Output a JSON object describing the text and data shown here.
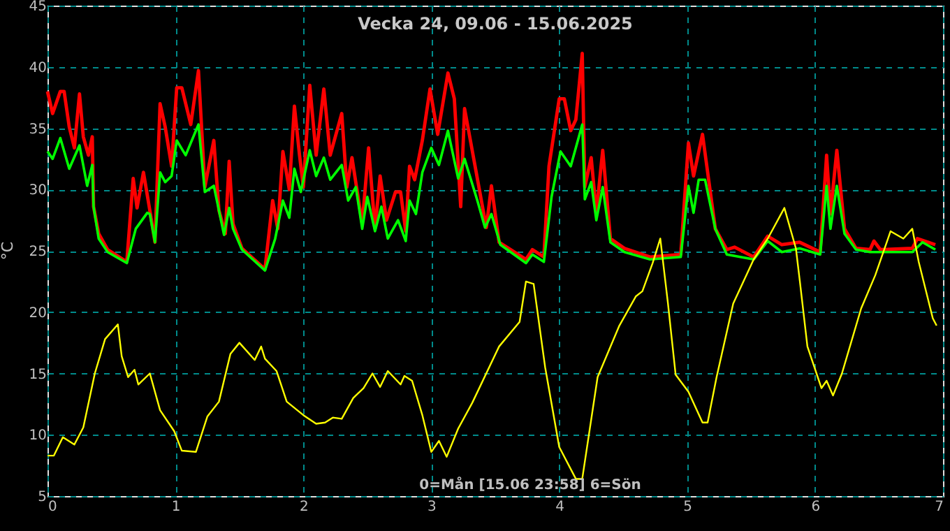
{
  "chart_data": {
    "type": "line",
    "title": "Vecka 24, 09.06 - 15.06.2025",
    "ylabel": "°C",
    "annotations": [
      "0=Mån [15.06 23:58] 6=Sön"
    ],
    "xlim": [
      0,
      7
    ],
    "xticks": [
      0,
      1,
      2,
      3,
      4,
      5,
      6,
      7
    ],
    "ylim": [
      5,
      45
    ],
    "yticks": [
      5,
      10,
      15,
      20,
      25,
      30,
      35,
      40,
      45
    ],
    "grid": true,
    "series": [
      {
        "color": "#ff0000",
        "x": [
          0.0,
          0.04,
          0.1,
          0.13,
          0.17,
          0.21,
          0.25,
          0.28,
          0.32,
          0.35,
          0.36,
          0.4,
          0.47,
          0.62,
          0.67,
          0.7,
          0.75,
          0.8,
          0.84,
          0.88,
          0.92,
          0.97,
          1.01,
          1.05,
          1.12,
          1.18,
          1.2,
          1.23,
          1.3,
          1.34,
          1.39,
          1.42,
          1.45,
          1.52,
          1.7,
          1.76,
          1.8,
          1.84,
          1.89,
          1.93,
          1.97,
          2.0,
          2.05,
          2.1,
          2.16,
          2.21,
          2.3,
          2.34,
          2.38,
          2.46,
          2.51,
          2.56,
          2.6,
          2.65,
          2.72,
          2.76,
          2.8,
          2.83,
          2.87,
          2.93,
          2.99,
          3.05,
          3.13,
          3.18,
          3.23,
          3.26,
          3.36,
          3.43,
          3.47,
          3.53,
          3.74,
          3.79,
          3.88,
          3.92,
          4.0,
          4.04,
          4.09,
          4.13,
          4.18,
          4.2,
          4.25,
          4.29,
          4.34,
          4.4,
          4.51,
          4.71,
          4.95,
          5.01,
          5.05,
          5.12,
          5.22,
          5.31,
          5.37,
          5.52,
          5.63,
          5.74,
          5.88,
          6.04,
          6.09,
          6.12,
          6.17,
          6.23,
          6.32,
          6.43,
          6.46,
          6.51,
          6.76,
          6.8,
          6.94
        ],
        "values": [
          38.0,
          36.2,
          38.0,
          38.0,
          35.1,
          33.4,
          37.8,
          34.3,
          32.8,
          34.3,
          28.6,
          26.4,
          25.1,
          24.1,
          30.9,
          28.5,
          31.4,
          28.3,
          25.7,
          37.0,
          35.1,
          31.9,
          38.3,
          38.3,
          35.3,
          39.7,
          35.9,
          30.2,
          34.0,
          28.3,
          26.4,
          32.3,
          27.2,
          25.2,
          23.5,
          29.1,
          26.8,
          33.1,
          30.0,
          36.8,
          32.8,
          30.2,
          38.5,
          32.8,
          38.2,
          32.8,
          36.2,
          30.2,
          32.6,
          27.2,
          33.4,
          26.8,
          31.1,
          27.5,
          29.8,
          29.8,
          26.6,
          31.9,
          30.8,
          34.0,
          38.2,
          34.5,
          39.5,
          37.4,
          28.6,
          36.6,
          30.9,
          26.9,
          30.3,
          25.7,
          24.3,
          25.1,
          24.5,
          31.9,
          37.4,
          37.4,
          34.8,
          35.7,
          41.1,
          30.2,
          32.6,
          28.1,
          33.2,
          26.0,
          25.2,
          24.5,
          24.7,
          33.8,
          31.1,
          34.5,
          26.8,
          25.1,
          25.3,
          24.5,
          26.2,
          25.5,
          25.7,
          24.9,
          32.8,
          28.0,
          33.2,
          26.8,
          25.2,
          25.1,
          25.8,
          25.1,
          25.2,
          26.0,
          25.5
        ]
      },
      {
        "color": "#00ff00",
        "x": [
          0.0,
          0.04,
          0.1,
          0.17,
          0.25,
          0.31,
          0.35,
          0.36,
          0.4,
          0.47,
          0.62,
          0.69,
          0.78,
          0.8,
          0.84,
          0.88,
          0.92,
          0.97,
          1.01,
          1.08,
          1.18,
          1.23,
          1.3,
          1.38,
          1.42,
          1.45,
          1.52,
          1.7,
          1.78,
          1.84,
          1.89,
          1.93,
          1.98,
          2.05,
          2.1,
          2.16,
          2.21,
          2.3,
          2.35,
          2.41,
          2.46,
          2.5,
          2.56,
          2.61,
          2.66,
          2.74,
          2.8,
          2.83,
          2.88,
          2.93,
          3.0,
          3.06,
          3.13,
          3.21,
          3.26,
          3.36,
          3.42,
          3.47,
          3.54,
          3.74,
          3.79,
          3.88,
          3.94,
          4.01,
          4.09,
          4.18,
          4.2,
          4.25,
          4.29,
          4.34,
          4.4,
          4.51,
          4.71,
          4.95,
          5.01,
          5.05,
          5.09,
          5.14,
          5.22,
          5.31,
          5.52,
          5.63,
          5.74,
          5.88,
          6.04,
          6.09,
          6.12,
          6.17,
          6.23,
          6.32,
          6.43,
          6.51,
          6.76,
          6.84,
          6.94
        ],
        "values": [
          33.1,
          32.5,
          34.2,
          31.7,
          33.6,
          30.3,
          32.0,
          28.6,
          26.0,
          24.9,
          24.0,
          26.8,
          28.1,
          28.0,
          25.7,
          31.4,
          30.6,
          31.1,
          34.0,
          32.8,
          35.3,
          29.8,
          30.3,
          26.3,
          28.5,
          26.8,
          25.1,
          23.4,
          26.0,
          29.1,
          27.7,
          31.7,
          29.8,
          33.2,
          31.1,
          32.6,
          30.8,
          32.0,
          29.1,
          30.2,
          26.8,
          29.4,
          26.6,
          28.6,
          26.0,
          27.5,
          25.8,
          29.1,
          28.0,
          31.4,
          33.4,
          32.0,
          34.8,
          30.9,
          32.5,
          29.1,
          26.9,
          28.0,
          25.5,
          24.0,
          24.7,
          24.1,
          29.4,
          33.1,
          31.9,
          35.3,
          29.2,
          30.6,
          27.5,
          30.2,
          25.7,
          24.9,
          24.3,
          24.5,
          30.3,
          28.1,
          30.8,
          30.8,
          26.8,
          24.7,
          24.3,
          25.8,
          24.9,
          25.2,
          24.7,
          30.3,
          26.8,
          30.3,
          26.4,
          25.1,
          24.9,
          24.9,
          24.9,
          25.7,
          25.1
        ]
      },
      {
        "color": "#ffff00",
        "x": [
          0.0,
          0.05,
          0.12,
          0.21,
          0.28,
          0.37,
          0.45,
          0.55,
          0.58,
          0.63,
          0.68,
          0.71,
          0.8,
          0.88,
          0.99,
          1.05,
          1.16,
          1.25,
          1.34,
          1.43,
          1.5,
          1.62,
          1.67,
          1.7,
          1.79,
          1.87,
          2.0,
          2.1,
          2.17,
          2.23,
          2.3,
          2.39,
          2.47,
          2.54,
          2.6,
          2.66,
          2.76,
          2.79,
          2.85,
          2.93,
          3.0,
          3.06,
          3.12,
          3.21,
          3.32,
          3.53,
          3.69,
          3.74,
          3.8,
          3.89,
          4.0,
          4.13,
          4.18,
          4.3,
          4.47,
          4.6,
          4.65,
          4.73,
          4.79,
          4.85,
          4.91,
          5.01,
          5.12,
          5.16,
          5.23,
          5.36,
          5.52,
          5.63,
          5.76,
          5.85,
          5.88,
          5.94,
          6.05,
          6.09,
          6.14,
          6.21,
          6.36,
          6.47,
          6.59,
          6.69,
          6.76,
          6.81,
          6.92,
          6.95
        ],
        "values": [
          8.3,
          8.3,
          9.8,
          9.2,
          10.6,
          15.0,
          17.8,
          19.0,
          16.4,
          14.7,
          15.3,
          14.1,
          15.0,
          12.0,
          10.3,
          8.7,
          8.6,
          11.5,
          12.7,
          16.6,
          17.5,
          16.1,
          17.2,
          16.2,
          15.2,
          12.7,
          11.6,
          10.9,
          11.0,
          11.4,
          11.3,
          13.0,
          13.8,
          15.0,
          13.9,
          15.2,
          14.1,
          14.8,
          14.4,
          11.6,
          8.6,
          9.5,
          8.2,
          10.5,
          12.6,
          17.2,
          19.2,
          22.5,
          22.3,
          15.5,
          9.0,
          6.4,
          6.4,
          14.7,
          18.9,
          21.3,
          21.7,
          24.0,
          26.0,
          20.7,
          14.9,
          13.5,
          11.0,
          11.0,
          14.7,
          20.7,
          24.3,
          26.0,
          28.5,
          25.2,
          22.6,
          17.2,
          13.8,
          14.4,
          13.2,
          15.0,
          20.3,
          23.0,
          26.6,
          26.0,
          26.8,
          24.1,
          19.5,
          18.9
        ]
      }
    ]
  }
}
